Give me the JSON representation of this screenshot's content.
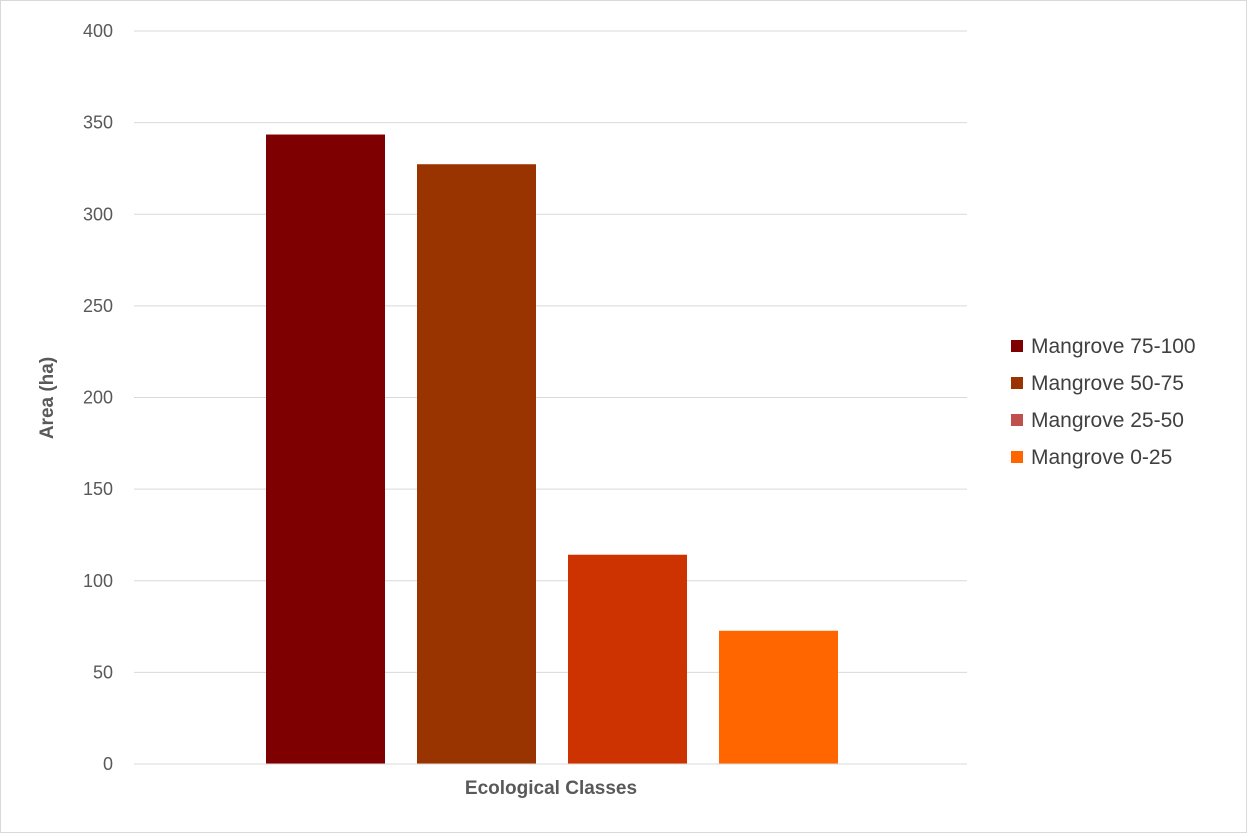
{
  "chart_data": {
    "type": "bar",
    "title": "",
    "xlabel": "Ecological Classes",
    "ylabel": "Area (ha)",
    "ylim": [
      0,
      400
    ],
    "yticks": [
      "0",
      "50",
      "100",
      "150",
      "200",
      "250",
      "300",
      "350",
      "400"
    ],
    "grid": true,
    "legend_position": "right",
    "categories": [
      ""
    ],
    "series": [
      {
        "name": "Mangrove 75-100",
        "values": [
          343.5
        ],
        "color": "#7F0000",
        "legend_color": "#7F0000"
      },
      {
        "name": "Mangrove 50-75",
        "values": [
          327.3
        ],
        "color": "#993300",
        "legend_color": "#993300"
      },
      {
        "name": "Mangrove 25-50",
        "values": [
          114.2
        ],
        "color": "#CC3300",
        "legend_color": "#C0504D"
      },
      {
        "name": "Mangrove 0-25",
        "values": [
          72.7
        ],
        "color": "#FF6600",
        "legend_color": "#FF6600"
      }
    ]
  }
}
